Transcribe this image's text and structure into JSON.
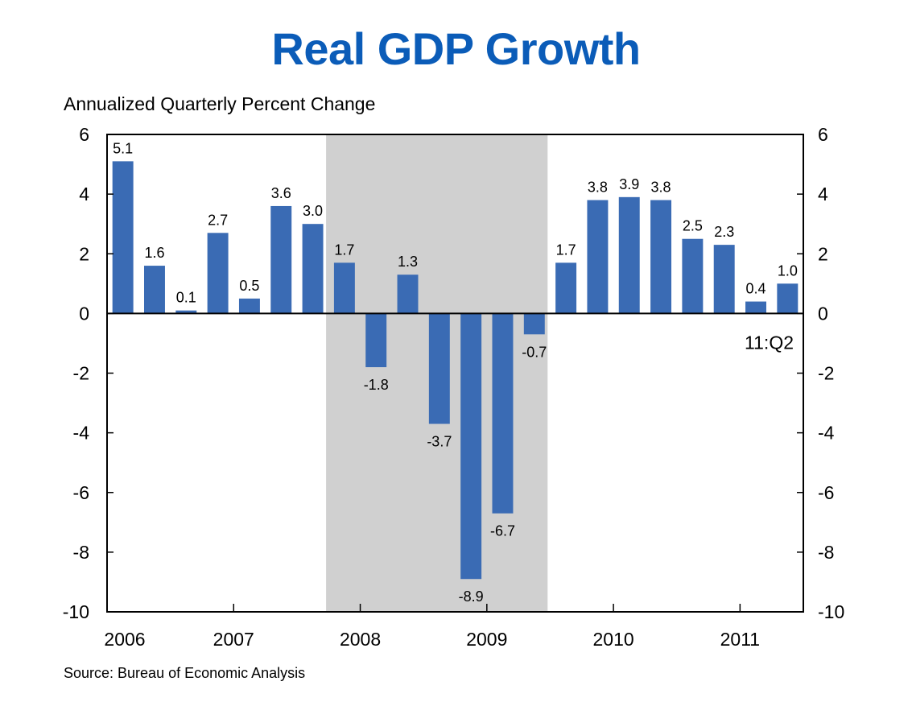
{
  "chart_data": {
    "type": "bar",
    "title": "Real GDP Growth",
    "ylabel": "Annualized Quarterly Percent Change",
    "xlabel": "",
    "source": "Source: Bureau of Economic Analysis",
    "annotation": "11:Q2",
    "ylim": [
      -10,
      6
    ],
    "yticks": [
      6,
      4,
      2,
      0,
      -2,
      -4,
      -6,
      -8,
      -10
    ],
    "ytick_labels": [
      "6",
      "4",
      "2",
      "0",
      "-2",
      "-4",
      "-6",
      "-8",
      "-10"
    ],
    "xtick_labels": [
      "2006",
      "2007",
      "2008",
      "2009",
      "2010",
      "2011"
    ],
    "grid": false,
    "bar_color": "#3a6bb4",
    "shade_color": "#d0d0d0",
    "recession_shading": {
      "start": "2007:Q4",
      "end": "2009:Q2"
    },
    "categories": [
      "2006:Q1",
      "2006:Q2",
      "2006:Q3",
      "2006:Q4",
      "2007:Q1",
      "2007:Q2",
      "2007:Q3",
      "2007:Q4",
      "2008:Q1",
      "2008:Q2",
      "2008:Q3",
      "2008:Q4",
      "2009:Q1",
      "2009:Q2",
      "2009:Q3",
      "2009:Q4",
      "2010:Q1",
      "2010:Q2",
      "2010:Q3",
      "2010:Q4",
      "2011:Q1",
      "2011:Q2"
    ],
    "values": [
      5.1,
      1.6,
      0.1,
      2.7,
      0.5,
      3.6,
      3.0,
      1.7,
      -1.8,
      1.3,
      -3.7,
      -8.9,
      -6.7,
      -0.7,
      1.7,
      3.8,
      3.9,
      3.8,
      2.5,
      2.3,
      0.4,
      1.0
    ],
    "value_labels": [
      "5.1",
      "1.6",
      "0.1",
      "2.7",
      "0.5",
      "3.6",
      "3.0",
      "1.7",
      "-1.8",
      "1.3",
      "-3.7",
      "-8.9",
      "-6.7",
      "-0.7",
      "1.7",
      "3.8",
      "3.9",
      "3.8",
      "2.5",
      "2.3",
      "0.4",
      "1.0"
    ]
  }
}
